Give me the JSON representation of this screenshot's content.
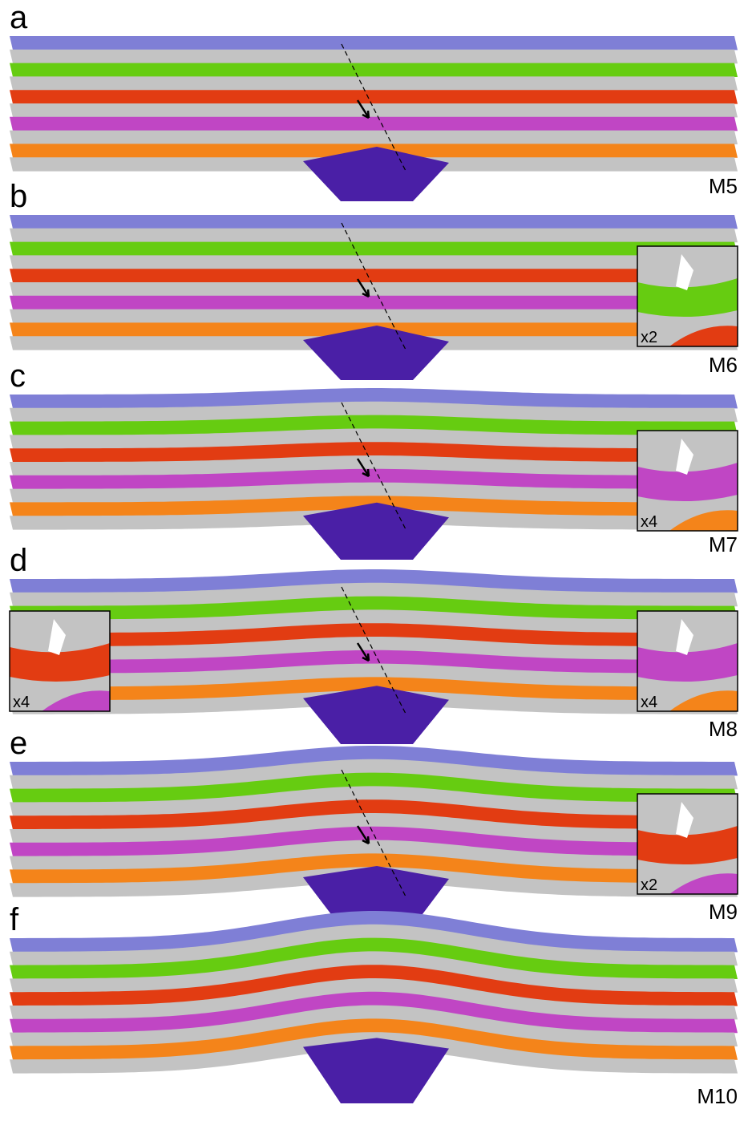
{
  "panels": [
    {
      "letter": "a",
      "model": "M5",
      "insets": []
    },
    {
      "letter": "b",
      "model": "M6",
      "insets": [
        {
          "label": "x2"
        }
      ]
    },
    {
      "letter": "c",
      "model": "M7",
      "insets": [
        {
          "label": "x4"
        }
      ]
    },
    {
      "letter": "d",
      "model": "M8",
      "insets": [
        {
          "label": "x4"
        },
        {
          "label": "x4"
        }
      ]
    },
    {
      "letter": "e",
      "model": "M9",
      "insets": [
        {
          "label": "x2"
        }
      ]
    },
    {
      "letter": "f",
      "model": "M10",
      "insets": []
    }
  ]
}
